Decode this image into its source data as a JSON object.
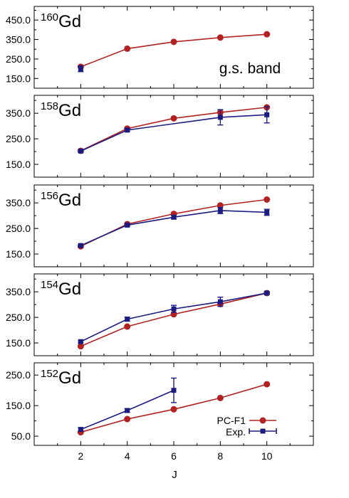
{
  "figure": {
    "xlabel": "J",
    "x_ticks": [
      2,
      4,
      6,
      8,
      10
    ],
    "band_label": "g.s. band",
    "legend": {
      "pcf1": "PC-F1",
      "exp": "Exp."
    },
    "colors": {
      "pcf1": "#b22222",
      "exp": "#1c1c80"
    }
  },
  "chart_data": [
    {
      "type": "line",
      "nucleus": {
        "mass": "160",
        "symbol": "Gd"
      },
      "xlim": [
        0,
        12
      ],
      "ylim": [
        100,
        520
      ],
      "yticks": [
        150.0,
        250.0,
        350.0,
        450.0
      ],
      "ytick_labels": [
        "150.0",
        "250.0",
        "350.0",
        "450.0"
      ],
      "series": [
        {
          "name": "PC-F1",
          "x": [
            2,
            4,
            6,
            8,
            10
          ],
          "values": [
            210,
            303,
            338,
            360,
            377
          ]
        },
        {
          "name": "Exp.",
          "x": [
            2
          ],
          "values": [
            200
          ],
          "errors": [
            15
          ]
        }
      ]
    },
    {
      "type": "line",
      "nucleus": {
        "mass": "158",
        "symbol": "Gd"
      },
      "xlim": [
        0,
        12
      ],
      "ylim": [
        100,
        420
      ],
      "yticks": [
        150.0,
        250.0,
        350.0
      ],
      "ytick_labels": [
        "150.0",
        "250.0",
        "350.0"
      ],
      "series": [
        {
          "name": "PC-F1",
          "x": [
            2,
            4,
            6,
            8,
            10
          ],
          "values": [
            203,
            290,
            330,
            353,
            373
          ]
        },
        {
          "name": "Exp.",
          "x": [
            2,
            4,
            8,
            10
          ],
          "values": [
            202,
            284,
            334,
            344
          ],
          "errors": [
            5,
            5,
            30,
            32
          ]
        }
      ]
    },
    {
      "type": "line",
      "nucleus": {
        "mass": "156",
        "symbol": "Gd"
      },
      "xlim": [
        0,
        12
      ],
      "ylim": [
        100,
        420
      ],
      "yticks": [
        150.0,
        250.0,
        350.0
      ],
      "ytick_labels": [
        "150.0",
        "250.0",
        "350.0"
      ],
      "series": [
        {
          "name": "PC-F1",
          "x": [
            2,
            4,
            6,
            8,
            10
          ],
          "values": [
            180,
            267,
            307,
            340,
            363
          ]
        },
        {
          "name": "Exp.",
          "x": [
            2,
            4,
            6,
            8,
            10
          ],
          "values": [
            183,
            263,
            294,
            320,
            313
          ],
          "errors": [
            4,
            5,
            7,
            12,
            12
          ]
        }
      ]
    },
    {
      "type": "line",
      "nucleus": {
        "mass": "154",
        "symbol": "Gd"
      },
      "xlim": [
        0,
        12
      ],
      "ylim": [
        100,
        420
      ],
      "yticks": [
        150.0,
        250.0,
        350.0
      ],
      "ytick_labels": [
        "150.0",
        "250.0",
        "350.0"
      ],
      "series": [
        {
          "name": "PC-F1",
          "x": [
            2,
            4,
            6,
            8,
            10
          ],
          "values": [
            137,
            214,
            262,
            302,
            345
          ]
        },
        {
          "name": "Exp.",
          "x": [
            2,
            4,
            6,
            8,
            10
          ],
          "values": [
            155,
            243,
            283,
            311,
            345
          ],
          "errors": [
            4,
            8,
            14,
            18,
            6
          ]
        }
      ]
    },
    {
      "type": "line",
      "nucleus": {
        "mass": "152",
        "symbol": "Gd"
      },
      "xlim": [
        0,
        12
      ],
      "ylim": [
        20,
        290
      ],
      "yticks": [
        50.0,
        150.0,
        250.0
      ],
      "ytick_labels": [
        "50.0",
        "150.0",
        "250.0"
      ],
      "series": [
        {
          "name": "PC-F1",
          "x": [
            2,
            4,
            6,
            8,
            10
          ],
          "values": [
            63,
            106,
            138,
            175,
            220
          ]
        },
        {
          "name": "Exp.",
          "x": [
            2,
            4,
            6
          ],
          "values": [
            72,
            134,
            200
          ],
          "errors": [
            6,
            6,
            40
          ]
        }
      ]
    }
  ]
}
